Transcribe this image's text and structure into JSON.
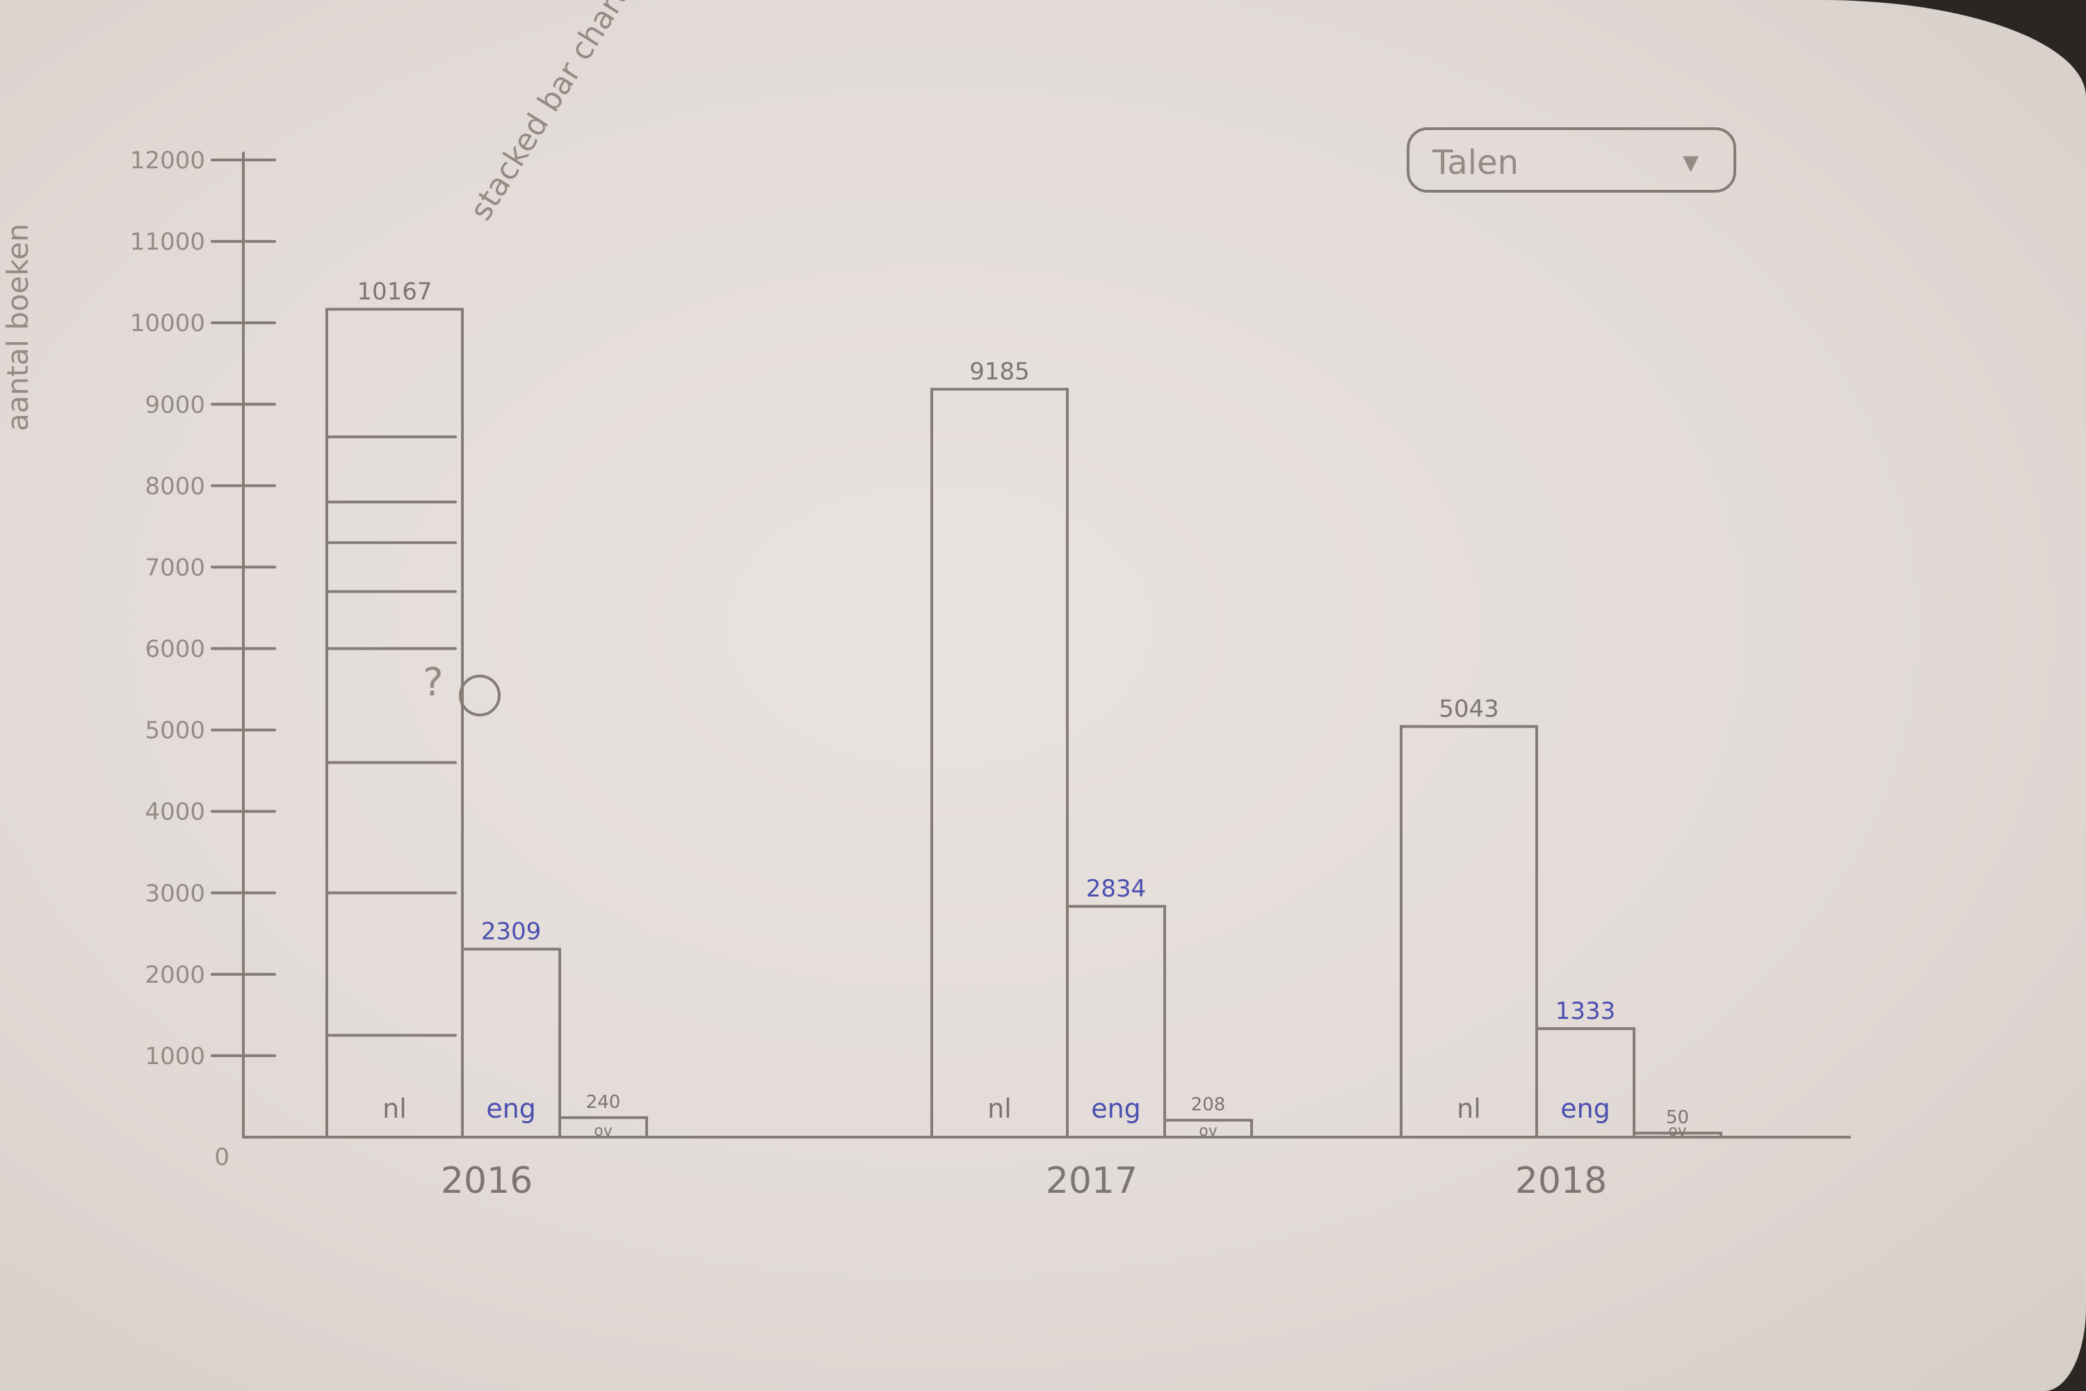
{
  "chart_data": {
    "type": "bar",
    "title": "stacked bar chart",
    "ylabel": "aantal boeken",
    "xlabel": "",
    "ylim": [
      0,
      12000
    ],
    "yticks": [
      "12000",
      "11000",
      "10000",
      "9000",
      "8000",
      "7000",
      "6000",
      "5000",
      "4000",
      "3000",
      "2000",
      "1000",
      "0"
    ],
    "categories": [
      "2016",
      "2017",
      "2018"
    ],
    "series": [
      {
        "name": "nl",
        "values": [
          10167,
          9185,
          5043
        ],
        "labels": [
          "10167",
          "9185",
          "5043"
        ]
      },
      {
        "name": "eng",
        "values": [
          2309,
          2834,
          1333
        ],
        "labels": [
          "2309",
          "2834",
          "1333"
        ]
      },
      {
        "name": "ov",
        "values": [
          240,
          208,
          50
        ],
        "labels": [
          "240",
          "208",
          "50"
        ]
      }
    ],
    "stack_dividers_2016": [
      1250,
      3000,
      4600,
      6000,
      6700,
      7300,
      7800,
      8600
    ]
  },
  "dropdown": {
    "label": "Talen",
    "arrow": "▾"
  },
  "annotation": {
    "symbol": "?"
  }
}
